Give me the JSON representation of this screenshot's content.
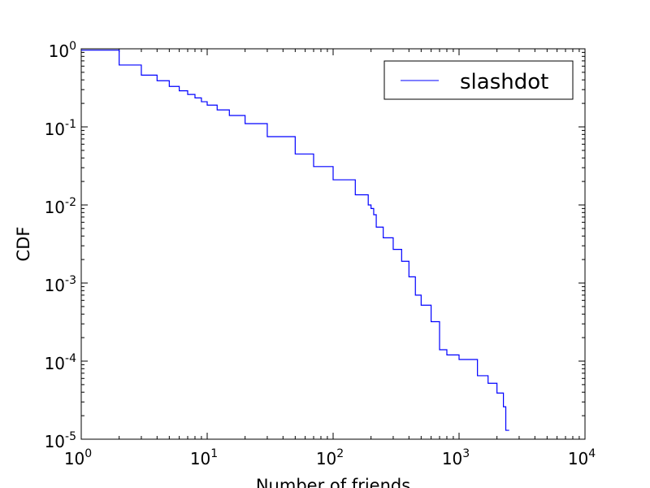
{
  "chart_data": {
    "type": "line",
    "xlabel": "Number of friends",
    "ylabel": "CDF",
    "xscale": "log",
    "yscale": "log",
    "xlim": [
      1,
      10000
    ],
    "ylim": [
      1e-05,
      1
    ],
    "grid": false,
    "legend_position": "top-right",
    "x_ticks": [
      {
        "base": "10",
        "exp": "0"
      },
      {
        "base": "10",
        "exp": "1"
      },
      {
        "base": "10",
        "exp": "2"
      },
      {
        "base": "10",
        "exp": "3"
      },
      {
        "base": "10",
        "exp": "4"
      }
    ],
    "y_ticks": [
      {
        "base": "10",
        "exp": "-5"
      },
      {
        "base": "10",
        "exp": "-4"
      },
      {
        "base": "10",
        "exp": "-3"
      },
      {
        "base": "10",
        "exp": "-2"
      },
      {
        "base": "10",
        "exp": "-1"
      },
      {
        "base": "10",
        "exp": "0"
      }
    ],
    "series": [
      {
        "name": "slashdot",
        "color": "#0000ff",
        "drawstyle": "steps-post",
        "x": [
          1,
          2,
          3,
          4,
          5,
          6,
          7,
          8,
          9,
          10,
          12,
          15,
          20,
          30,
          50,
          70,
          100,
          150,
          190,
          200,
          210,
          220,
          250,
          300,
          350,
          400,
          450,
          500,
          600,
          700,
          800,
          1000,
          1400,
          1700,
          2000,
          2250,
          2350,
          2500
        ],
        "y": [
          0.96,
          0.62,
          0.46,
          0.39,
          0.33,
          0.29,
          0.26,
          0.235,
          0.21,
          0.19,
          0.165,
          0.14,
          0.11,
          0.075,
          0.045,
          0.031,
          0.021,
          0.0135,
          0.01,
          0.009,
          0.0075,
          0.0052,
          0.0038,
          0.0027,
          0.0019,
          0.0012,
          0.0007,
          0.00052,
          0.00032,
          0.00014,
          0.00012,
          0.000105,
          6.5e-05,
          5.2e-05,
          3.9e-05,
          2.6e-05,
          1.3e-05,
          1.3e-05
        ]
      }
    ]
  }
}
